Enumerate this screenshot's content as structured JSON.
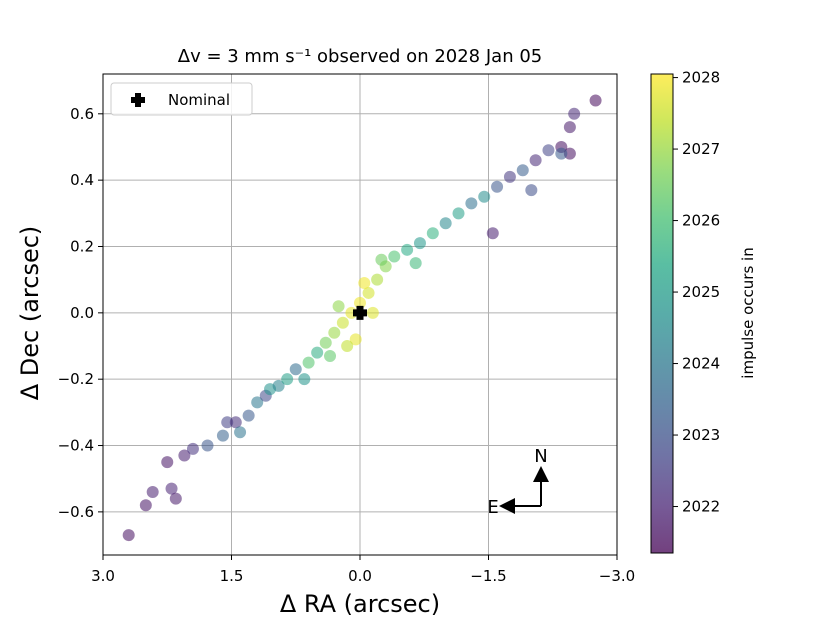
{
  "chart_data": {
    "type": "scatter",
    "title": "Δv = 3 mm s⁻¹ observed on 2028 Jan 05",
    "xlabel": "Δ RA (arcsec)",
    "ylabel": "Δ Dec (arcsec)",
    "xlim": [
      3.0,
      -3.0
    ],
    "ylim": [
      -0.73,
      0.72
    ],
    "x_ticks": [
      3.0,
      1.5,
      0.0,
      -1.5,
      -3.0
    ],
    "x_tick_labels": [
      "3.0",
      "1.5",
      "0.0",
      "−1.5",
      "−3.0"
    ],
    "y_ticks": [
      0.6,
      0.4,
      0.2,
      0.0,
      -0.2,
      -0.4,
      -0.6
    ],
    "y_tick_labels": [
      "0.6",
      "0.4",
      "0.2",
      "0.0",
      "−0.2",
      "−0.4",
      "−0.6"
    ],
    "grid": true,
    "legend": {
      "position": "top-left",
      "entries": [
        "Nominal"
      ]
    },
    "nominal": {
      "x": 0.0,
      "y": 0.0,
      "label": "Nominal"
    },
    "colorbar": {
      "label": "impulse occurs in",
      "range": [
        2021.35,
        2028.05
      ],
      "ticks": [
        2022,
        2023,
        2024,
        2025,
        2026,
        2027,
        2028
      ],
      "tick_labels": [
        "2022",
        "2023",
        "2024",
        "2025",
        "2026",
        "2027",
        "2028"
      ],
      "colormap": [
        "#440154",
        "#482475",
        "#414487",
        "#355f8d",
        "#2a788e",
        "#21918c",
        "#22a884",
        "#44bf70",
        "#7ad151",
        "#bddf26",
        "#fde725"
      ]
    },
    "compass": {
      "north": "N",
      "east": "E"
    },
    "points": [
      {
        "x": 2.7,
        "y": -0.67,
        "t": 2021.6
      },
      {
        "x": 2.5,
        "y": -0.58,
        "t": 2021.7
      },
      {
        "x": 2.42,
        "y": -0.54,
        "t": 2021.9
      },
      {
        "x": 2.2,
        "y": -0.53,
        "t": 2022.0
      },
      {
        "x": 2.15,
        "y": -0.56,
        "t": 2021.8
      },
      {
        "x": 2.25,
        "y": -0.45,
        "t": 2021.7
      },
      {
        "x": 2.05,
        "y": -0.43,
        "t": 2021.9
      },
      {
        "x": 1.95,
        "y": -0.41,
        "t": 2022.3
      },
      {
        "x": 1.78,
        "y": -0.4,
        "t": 2023.1
      },
      {
        "x": 1.6,
        "y": -0.37,
        "t": 2023.4
      },
      {
        "x": 1.55,
        "y": -0.33,
        "t": 2022.6
      },
      {
        "x": 1.45,
        "y": -0.33,
        "t": 2022.2
      },
      {
        "x": 1.3,
        "y": -0.31,
        "t": 2023.2
      },
      {
        "x": 1.2,
        "y": -0.27,
        "t": 2024.0
      },
      {
        "x": 1.1,
        "y": -0.25,
        "t": 2022.8
      },
      {
        "x": 1.05,
        "y": -0.23,
        "t": 2024.7
      },
      {
        "x": 0.95,
        "y": -0.22,
        "t": 2024.3
      },
      {
        "x": 0.85,
        "y": -0.2,
        "t": 2025.1
      },
      {
        "x": 0.75,
        "y": -0.17,
        "t": 2023.7
      },
      {
        "x": 0.6,
        "y": -0.15,
        "t": 2026.2
      },
      {
        "x": 0.5,
        "y": -0.12,
        "t": 2025.5
      },
      {
        "x": 0.4,
        "y": -0.09,
        "t": 2026.6
      },
      {
        "x": 0.3,
        "y": -0.06,
        "t": 2027.0
      },
      {
        "x": 0.2,
        "y": -0.03,
        "t": 2027.5
      },
      {
        "x": 0.1,
        "y": 0.0,
        "t": 2027.8
      },
      {
        "x": 0.0,
        "y": 0.03,
        "t": 2027.9
      },
      {
        "x": -0.1,
        "y": 0.06,
        "t": 2027.6
      },
      {
        "x": -0.2,
        "y": 0.1,
        "t": 2027.2
      },
      {
        "x": -0.3,
        "y": 0.14,
        "t": 2026.8
      },
      {
        "x": -0.4,
        "y": 0.17,
        "t": 2026.1
      },
      {
        "x": -0.55,
        "y": 0.19,
        "t": 2025.4
      },
      {
        "x": -0.7,
        "y": 0.21,
        "t": 2024.9
      },
      {
        "x": -0.85,
        "y": 0.24,
        "t": 2025.6
      },
      {
        "x": -1.0,
        "y": 0.27,
        "t": 2024.4
      },
      {
        "x": -1.15,
        "y": 0.3,
        "t": 2025.1
      },
      {
        "x": -1.3,
        "y": 0.33,
        "t": 2023.8
      },
      {
        "x": -1.45,
        "y": 0.35,
        "t": 2024.6
      },
      {
        "x": -1.6,
        "y": 0.38,
        "t": 2023.1
      },
      {
        "x": -1.75,
        "y": 0.41,
        "t": 2022.4
      },
      {
        "x": -1.9,
        "y": 0.43,
        "t": 2023.3
      },
      {
        "x": -2.05,
        "y": 0.46,
        "t": 2022.1
      },
      {
        "x": -2.2,
        "y": 0.49,
        "t": 2022.7
      },
      {
        "x": -2.35,
        "y": 0.5,
        "t": 2021.6
      },
      {
        "x": -2.45,
        "y": 0.56,
        "t": 2021.8
      },
      {
        "x": -2.5,
        "y": 0.6,
        "t": 2022.1
      },
      {
        "x": -2.75,
        "y": 0.64,
        "t": 2021.5
      },
      {
        "x": -2.45,
        "y": 0.48,
        "t": 2021.6
      },
      {
        "x": -2.35,
        "y": 0.48,
        "t": 2023.2
      },
      {
        "x": -2.0,
        "y": 0.37,
        "t": 2022.9
      },
      {
        "x": -1.55,
        "y": 0.24,
        "t": 2021.9
      },
      {
        "x": 0.05,
        "y": -0.08,
        "t": 2027.8
      },
      {
        "x": -0.05,
        "y": 0.09,
        "t": 2027.9
      },
      {
        "x": 0.15,
        "y": -0.1,
        "t": 2027.4
      },
      {
        "x": -0.15,
        "y": 0.0,
        "t": 2027.7
      },
      {
        "x": 0.25,
        "y": 0.02,
        "t": 2026.9
      },
      {
        "x": -0.25,
        "y": 0.16,
        "t": 2026.5
      },
      {
        "x": 0.35,
        "y": -0.13,
        "t": 2026.3
      },
      {
        "x": 0.65,
        "y": -0.2,
        "t": 2024.8
      },
      {
        "x": -0.65,
        "y": 0.15,
        "t": 2025.8
      },
      {
        "x": 1.4,
        "y": -0.36,
        "t": 2023.9
      }
    ]
  }
}
